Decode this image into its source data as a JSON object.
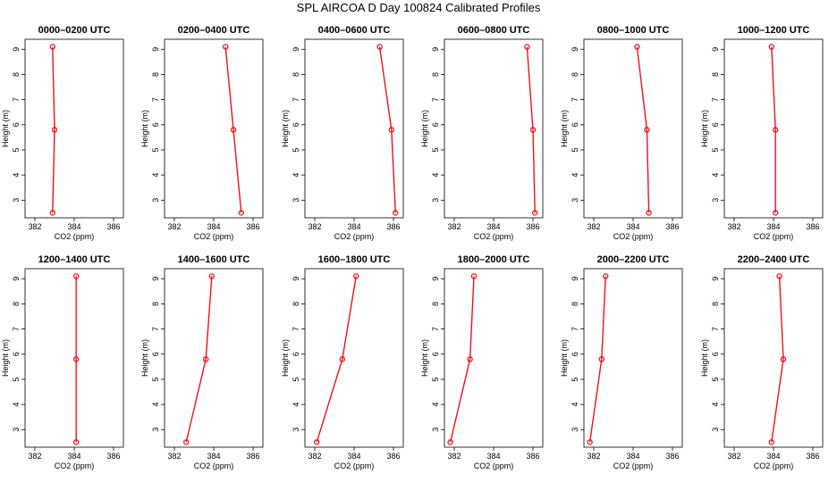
{
  "title": "SPL AIRCOA D  Day 100824  Calibrated Profiles",
  "line_color": "#e8141b",
  "chart_data": [
    {
      "type": "line",
      "title": "0000–0200 UTC",
      "xlabel": "CO2 (ppm)",
      "ylabel": "Height (m)",
      "xlim": [
        381.5,
        386.5
      ],
      "ylim": [
        2.3,
        9.4
      ],
      "xticks": [
        382,
        384,
        386
      ],
      "yticks": [
        3,
        4,
        5,
        6,
        7,
        8,
        9
      ],
      "series": [
        {
          "points": [
            [
              382.9,
              2.5
            ],
            [
              383.0,
              5.8
            ],
            [
              382.9,
              9.1
            ]
          ]
        }
      ]
    },
    {
      "type": "line",
      "title": "0200–0400 UTC",
      "xlabel": "CO2 (ppm)",
      "ylabel": "Height (m)",
      "xlim": [
        381.5,
        386.5
      ],
      "ylim": [
        2.3,
        9.4
      ],
      "xticks": [
        382,
        384,
        386
      ],
      "yticks": [
        3,
        4,
        5,
        6,
        7,
        8,
        9
      ],
      "series": [
        {
          "points": [
            [
              385.4,
              2.5
            ],
            [
              385.0,
              5.8
            ],
            [
              384.6,
              9.1
            ]
          ]
        }
      ]
    },
    {
      "type": "line",
      "title": "0400–0600 UTC",
      "xlabel": "CO2 (ppm)",
      "ylabel": "Height (m)",
      "xlim": [
        381.5,
        386.5
      ],
      "ylim": [
        2.3,
        9.4
      ],
      "xticks": [
        382,
        384,
        386
      ],
      "yticks": [
        3,
        4,
        5,
        6,
        7,
        8,
        9
      ],
      "series": [
        {
          "points": [
            [
              386.1,
              2.5
            ],
            [
              385.9,
              5.8
            ],
            [
              385.3,
              9.1
            ]
          ]
        }
      ]
    },
    {
      "type": "line",
      "title": "0600–0800 UTC",
      "xlabel": "CO2 (ppm)",
      "ylabel": "Height (m)",
      "xlim": [
        381.5,
        386.5
      ],
      "ylim": [
        2.3,
        9.4
      ],
      "xticks": [
        382,
        384,
        386
      ],
      "yticks": [
        3,
        4,
        5,
        6,
        7,
        8,
        9
      ],
      "series": [
        {
          "points": [
            [
              386.1,
              2.5
            ],
            [
              386.0,
              5.8
            ],
            [
              385.7,
              9.1
            ]
          ]
        }
      ]
    },
    {
      "type": "line",
      "title": "0800–1000 UTC",
      "xlabel": "CO2 (ppm)",
      "ylabel": "Height (m)",
      "xlim": [
        381.5,
        386.5
      ],
      "ylim": [
        2.3,
        9.4
      ],
      "xticks": [
        382,
        384,
        386
      ],
      "yticks": [
        3,
        4,
        5,
        6,
        7,
        8,
        9
      ],
      "series": [
        {
          "points": [
            [
              384.8,
              2.5
            ],
            [
              384.7,
              5.8
            ],
            [
              384.2,
              9.1
            ]
          ]
        }
      ]
    },
    {
      "type": "line",
      "title": "1000–1200 UTC",
      "xlabel": "CO2 (ppm)",
      "ylabel": "Height (m)",
      "xlim": [
        381.5,
        386.5
      ],
      "ylim": [
        2.3,
        9.4
      ],
      "xticks": [
        382,
        384,
        386
      ],
      "yticks": [
        3,
        4,
        5,
        6,
        7,
        8,
        9
      ],
      "series": [
        {
          "points": [
            [
              384.1,
              2.5
            ],
            [
              384.1,
              5.8
            ],
            [
              383.9,
              9.1
            ]
          ]
        }
      ]
    },
    {
      "type": "line",
      "title": "1200–1400 UTC",
      "xlabel": "CO2 (ppm)",
      "ylabel": "Height (m)",
      "xlim": [
        381.5,
        386.5
      ],
      "ylim": [
        2.3,
        9.4
      ],
      "xticks": [
        382,
        384,
        386
      ],
      "yticks": [
        3,
        4,
        5,
        6,
        7,
        8,
        9
      ],
      "series": [
        {
          "points": [
            [
              384.1,
              2.5
            ],
            [
              384.1,
              5.8
            ],
            [
              384.1,
              9.1
            ]
          ]
        }
      ]
    },
    {
      "type": "line",
      "title": "1400–1600 UTC",
      "xlabel": "CO2 (ppm)",
      "ylabel": "Height (m)",
      "xlim": [
        381.5,
        386.5
      ],
      "ylim": [
        2.3,
        9.4
      ],
      "xticks": [
        382,
        384,
        386
      ],
      "yticks": [
        3,
        4,
        5,
        6,
        7,
        8,
        9
      ],
      "series": [
        {
          "points": [
            [
              382.6,
              2.5
            ],
            [
              383.6,
              5.8
            ],
            [
              383.9,
              9.1
            ]
          ]
        }
      ]
    },
    {
      "type": "line",
      "title": "1600–1800 UTC",
      "xlabel": "CO2 (ppm)",
      "ylabel": "Height (m)",
      "xlim": [
        381.5,
        386.5
      ],
      "ylim": [
        2.3,
        9.4
      ],
      "xticks": [
        382,
        384,
        386
      ],
      "yticks": [
        3,
        4,
        5,
        6,
        7,
        8,
        9
      ],
      "series": [
        {
          "points": [
            [
              382.1,
              2.5
            ],
            [
              383.4,
              5.8
            ],
            [
              384.1,
              9.1
            ]
          ]
        }
      ]
    },
    {
      "type": "line",
      "title": "1800–2000 UTC",
      "xlabel": "CO2 (ppm)",
      "ylabel": "Height (m)",
      "xlim": [
        381.5,
        386.5
      ],
      "ylim": [
        2.3,
        9.4
      ],
      "xticks": [
        382,
        384,
        386
      ],
      "yticks": [
        3,
        4,
        5,
        6,
        7,
        8,
        9
      ],
      "series": [
        {
          "points": [
            [
              381.8,
              2.5
            ],
            [
              382.8,
              5.8
            ],
            [
              383.0,
              9.1
            ]
          ]
        }
      ]
    },
    {
      "type": "line",
      "title": "2000–2200 UTC",
      "xlabel": "CO2 (ppm)",
      "ylabel": "Height (m)",
      "xlim": [
        381.5,
        386.5
      ],
      "ylim": [
        2.3,
        9.4
      ],
      "xticks": [
        382,
        384,
        386
      ],
      "yticks": [
        3,
        4,
        5,
        6,
        7,
        8,
        9
      ],
      "series": [
        {
          "points": [
            [
              381.8,
              2.5
            ],
            [
              382.4,
              5.8
            ],
            [
              382.6,
              9.1
            ]
          ]
        }
      ]
    },
    {
      "type": "line",
      "title": "2200–2400 UTC",
      "xlabel": "CO2 (ppm)",
      "ylabel": "Height (m)",
      "xlim": [
        381.5,
        386.5
      ],
      "ylim": [
        2.3,
        9.4
      ],
      "xticks": [
        382,
        384,
        386
      ],
      "yticks": [
        3,
        4,
        5,
        6,
        7,
        8,
        9
      ],
      "series": [
        {
          "points": [
            [
              383.9,
              2.5
            ],
            [
              384.5,
              5.8
            ],
            [
              384.3,
              9.1
            ]
          ]
        }
      ]
    }
  ]
}
